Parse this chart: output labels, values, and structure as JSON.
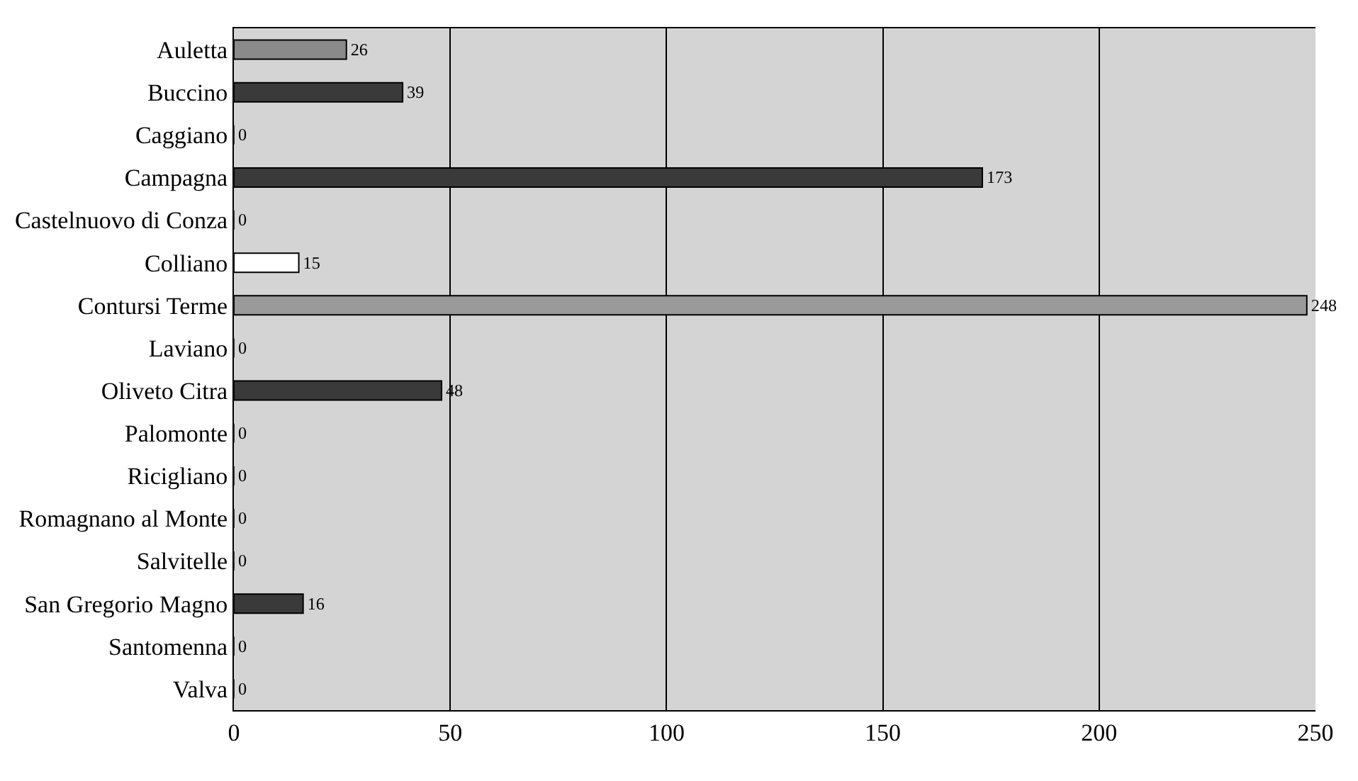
{
  "chart_data": {
    "type": "bar",
    "orientation": "horizontal",
    "categories": [
      "Auletta",
      "Buccino",
      "Caggiano",
      "Campagna",
      "Castelnuovo di Conza",
      "Colliano",
      "Contursi Terme",
      "Laviano",
      "Oliveto Citra",
      "Palomonte",
      "Ricigliano",
      "Romagnano al Monte",
      "Salvitelle",
      "San Gregorio Magno",
      "Santomenna",
      "Valva"
    ],
    "values": [
      26,
      39,
      0,
      173,
      0,
      15,
      248,
      0,
      48,
      0,
      0,
      0,
      0,
      16,
      0,
      0
    ],
    "colors": [
      "#8a8a8a",
      "#3a3a3a",
      "#3a3a3a",
      "#3a3a3a",
      "#3a3a3a",
      "#ffffff",
      "#9a9a9a",
      "#3a3a3a",
      "#3a3a3a",
      "#3a3a3a",
      "#3a3a3a",
      "#3a3a3a",
      "#3a3a3a",
      "#3a3a3a",
      "#3a3a3a",
      "#3a3a3a"
    ],
    "xlim": [
      0,
      250
    ],
    "xticks": [
      0,
      50,
      100,
      150,
      200,
      250
    ],
    "grid": "x",
    "data_labels": true
  }
}
